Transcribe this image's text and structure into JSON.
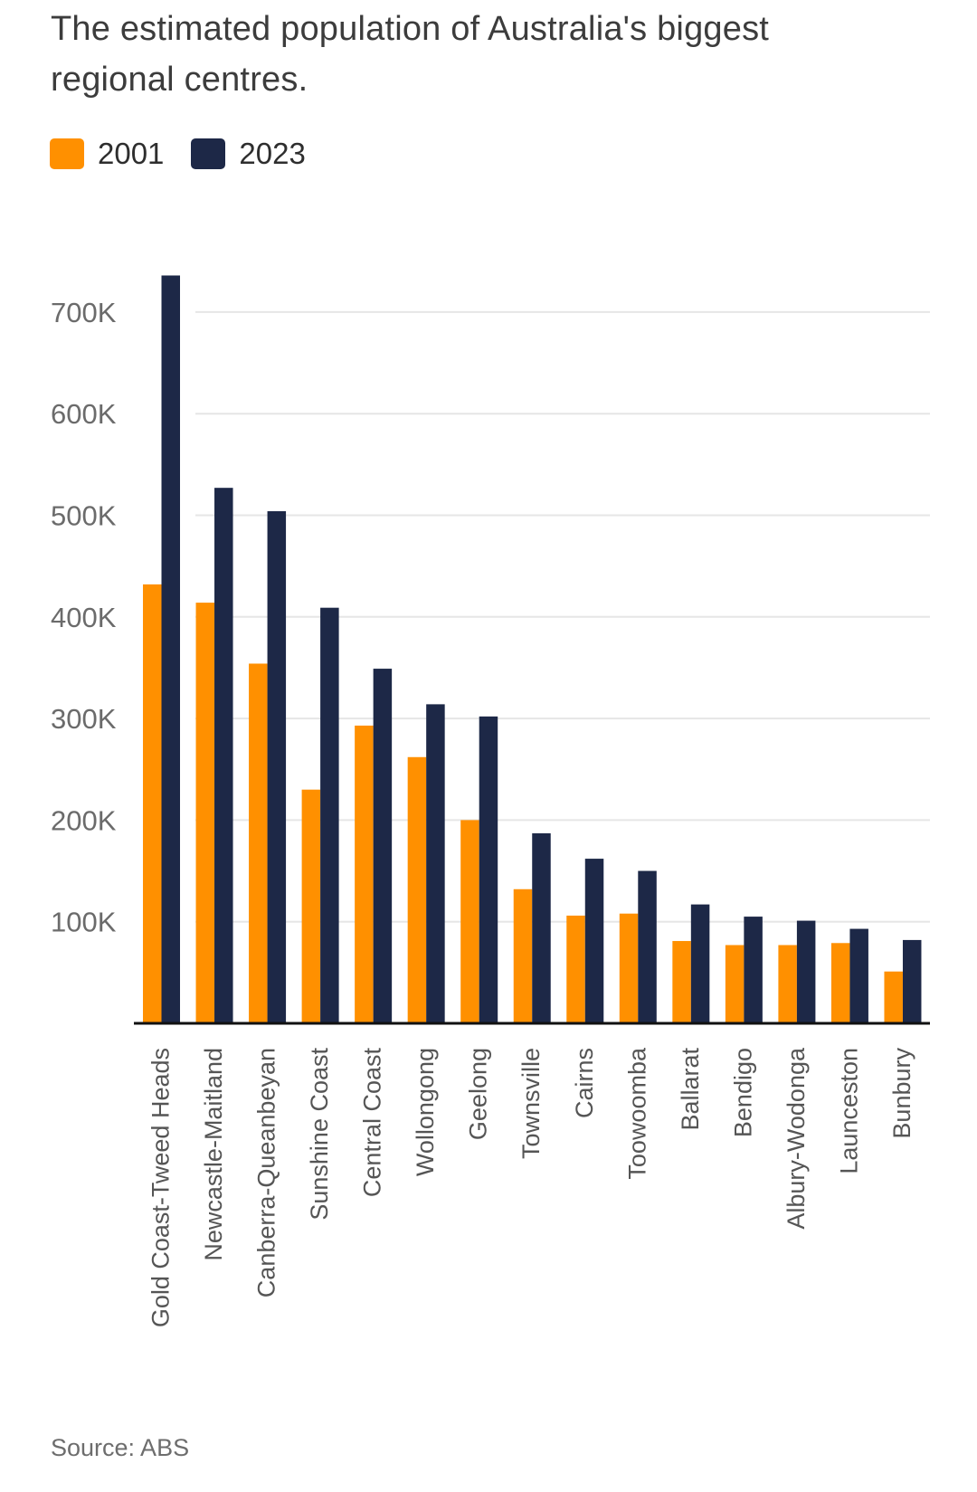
{
  "title": "The estimated population of Australia's biggest regional centres.",
  "source": "Source: ABS",
  "colors": {
    "series_2001": "#ff9000",
    "series_2023": "#1d2847",
    "grid": "#e6e6e6",
    "axis": "#111111"
  },
  "chart_data": {
    "type": "bar",
    "categories": [
      "Gold Coast-Tweed Heads",
      "Newcastle-Maitland",
      "Canberra-Queanbeyan",
      "Sunshine Coast",
      "Central Coast",
      "Wollongong",
      "Geelong",
      "Townsville",
      "Cairns",
      "Toowoomba",
      "Ballarat",
      "Bendigo",
      "Albury-Wodonga",
      "Launceston",
      "Bunbury"
    ],
    "series": [
      {
        "name": "2001",
        "color": "#ff9000",
        "values": [
          432000,
          414000,
          354000,
          230000,
          293000,
          262000,
          200000,
          132000,
          106000,
          108000,
          81000,
          77000,
          77000,
          79000,
          51000
        ]
      },
      {
        "name": "2023",
        "color": "#1d2847",
        "values": [
          736000,
          527000,
          504000,
          409000,
          349000,
          314000,
          302000,
          187000,
          162000,
          150000,
          117000,
          105000,
          101000,
          93000,
          82000
        ]
      }
    ],
    "yticks": [
      100000,
      200000,
      300000,
      400000,
      500000,
      600000,
      700000
    ],
    "ytick_labels": [
      "100K",
      "200K",
      "300K",
      "400K",
      "500K",
      "600K",
      "700K"
    ],
    "ylim": [
      0,
      740000
    ],
    "grid": true,
    "legend_position": "top-left",
    "xlabel": "",
    "ylabel": ""
  }
}
